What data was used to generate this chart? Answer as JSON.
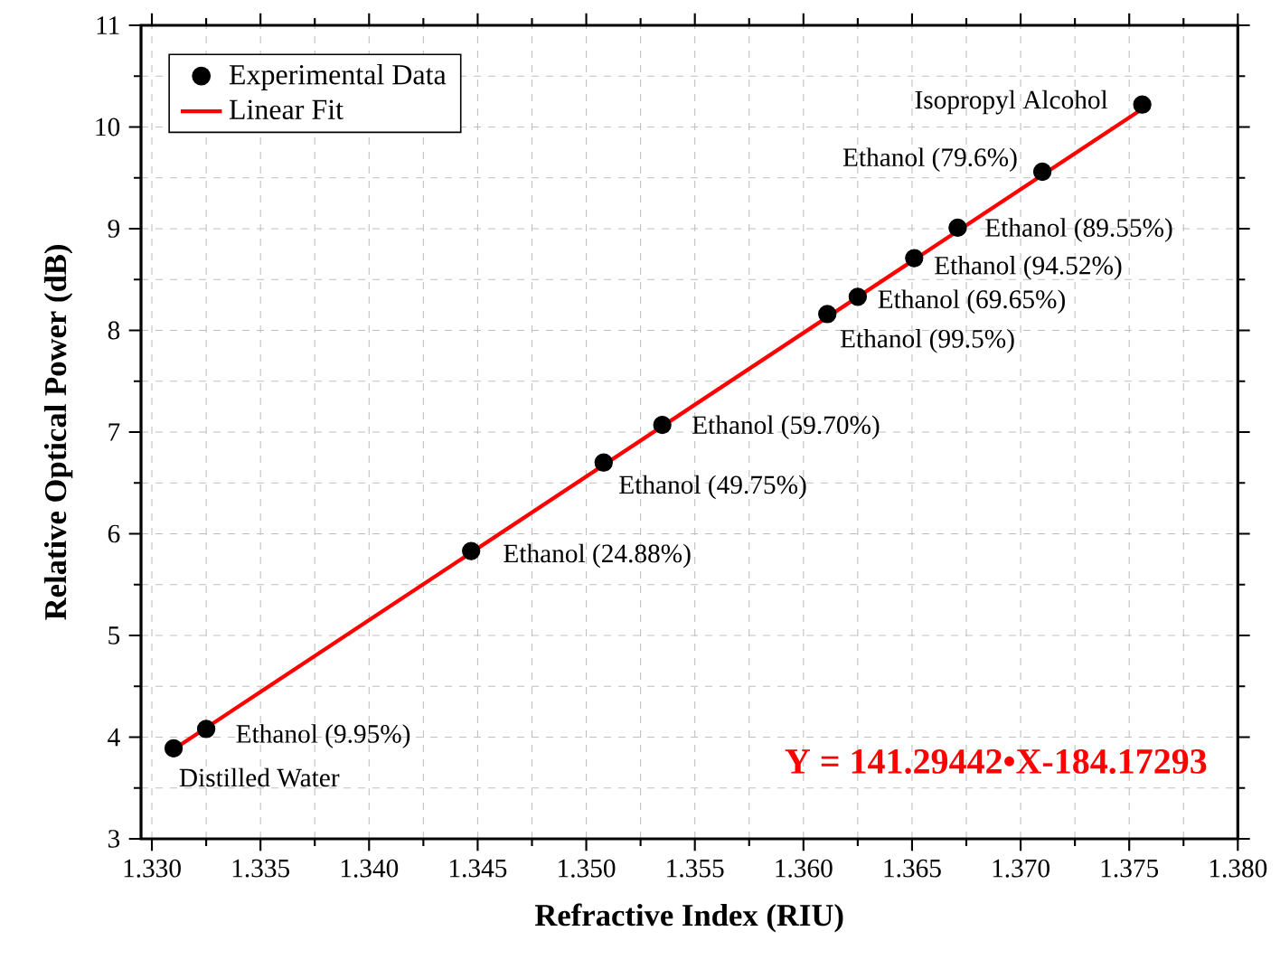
{
  "chart_data": {
    "type": "scatter",
    "xlabel": "Refractive Index (RIU)",
    "ylabel": "Relative Optical Power (dB)",
    "xlim": [
      1.3295,
      1.38
    ],
    "ylim": [
      3,
      11
    ],
    "xticks": [
      {
        "value": 1.33,
        "label": "1.330"
      },
      {
        "value": 1.335,
        "label": "1.335"
      },
      {
        "value": 1.34,
        "label": "1.340"
      },
      {
        "value": 1.345,
        "label": "1.345"
      },
      {
        "value": 1.35,
        "label": "1.350"
      },
      {
        "value": 1.355,
        "label": "1.355"
      },
      {
        "value": 1.36,
        "label": "1.360"
      },
      {
        "value": 1.365,
        "label": "1.365"
      },
      {
        "value": 1.37,
        "label": "1.370"
      },
      {
        "value": 1.375,
        "label": "1.375"
      },
      {
        "value": 1.38,
        "label": "1.380"
      }
    ],
    "yticks": [
      3,
      4,
      5,
      6,
      7,
      8,
      9,
      10,
      11
    ],
    "grid": true,
    "legend": "top left",
    "series": [
      {
        "name": "Experimental Data",
        "color": "#000000",
        "marker": "circle",
        "x": [
          1.331,
          1.3325,
          1.3447,
          1.3508,
          1.3535,
          1.3611,
          1.3625,
          1.3651,
          1.3671,
          1.371,
          1.3756
        ],
        "values": [
          3.89,
          4.08,
          5.83,
          6.7,
          7.07,
          8.16,
          8.33,
          8.71,
          9.01,
          9.56,
          10.22
        ]
      },
      {
        "name": "Linear Fit",
        "type": "line",
        "color": "#ff0000",
        "marker": "none",
        "line_style": "solid",
        "x": [
          1.331,
          1.3759
        ],
        "values": [
          3.88,
          10.22
        ]
      }
    ],
    "annotations": [
      {
        "text": "Distilled Water",
        "x": 1.331,
        "y": 3.89
      },
      {
        "text": "Ethanol (9.95%)",
        "x": 1.3325,
        "y": 4.08
      },
      {
        "text": "Ethanol (24.88%)",
        "x": 1.3447,
        "y": 5.83
      },
      {
        "text": "Ethanol (49.75%)",
        "x": 1.3508,
        "y": 6.7
      },
      {
        "text": "Ethanol (59.70%)",
        "x": 1.3535,
        "y": 7.07
      },
      {
        "text": "Ethanol (99.5%)",
        "x": 1.3611,
        "y": 8.16
      },
      {
        "text": "Ethanol (69.65%)",
        "x": 1.3625,
        "y": 8.33
      },
      {
        "text": "Ethanol (94.52%)",
        "x": 1.3651,
        "y": 8.71
      },
      {
        "text": "Ethanol (89.55%)",
        "x": 1.3671,
        "y": 9.01
      },
      {
        "text": "Ethanol (79.6%)",
        "x": 1.371,
        "y": 9.56
      },
      {
        "text": "Isopropyl Alcohol",
        "x": 1.3756,
        "y": 10.22
      },
      "Y = 141.29442•X-184.17293"
    ]
  }
}
